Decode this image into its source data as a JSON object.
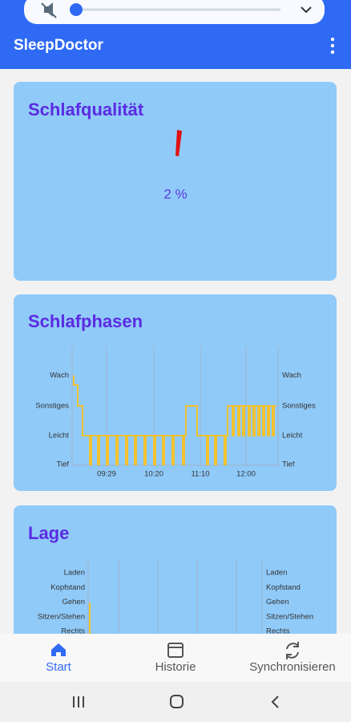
{
  "app_bar": {
    "title": "SleepDoctor"
  },
  "cards": [
    {
      "title": "Schlafqualität",
      "value_label": "2 %"
    },
    {
      "title": "Schlafphasen",
      "y_labels": [
        "Wach",
        "Sonstiges",
        "Leicht",
        "Tief"
      ],
      "x_labels": [
        "09:29",
        "10:20",
        "11:10",
        "12:00"
      ]
    },
    {
      "title": "Lage",
      "y_labels": [
        "Laden",
        "Kopfstand",
        "Gehen",
        "Sitzen/Stehen",
        "Rechts"
      ]
    }
  ],
  "bottom_nav": [
    {
      "label": "Start"
    },
    {
      "label": "Historie"
    },
    {
      "label": "Synchronisieren"
    }
  ]
}
